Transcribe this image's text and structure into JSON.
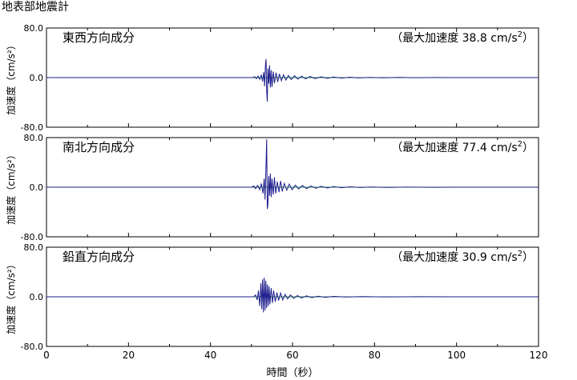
{
  "page": {
    "title": "地表部地震計"
  },
  "chart_data": [
    {
      "type": "line",
      "panel_title": "東西方向成分",
      "peak_label": "（最大加速度 38.8 cm/s",
      "peak_value": 38.8,
      "peak_unit_sup": "2",
      "peak_suffix": "）",
      "ylabel": "加速度（cm/s²）",
      "xlabel": "",
      "ylim": [
        -80.0,
        80.0
      ],
      "yticks": [
        "80.0",
        "0.0",
        "-80.0"
      ],
      "xlim": [
        0,
        120
      ],
      "xticks": [],
      "series": [
        {
          "color": "#1c1c8c",
          "points": [
            [
              0,
              0
            ],
            [
              50.3,
              0
            ],
            [
              50.8,
              1.5
            ],
            [
              51.2,
              -1.8
            ],
            [
              51.6,
              2.5
            ],
            [
              52.0,
              -2.8
            ],
            [
              52.4,
              4
            ],
            [
              52.7,
              -6
            ],
            [
              53.0,
              9
            ],
            [
              53.2,
              -14
            ],
            [
              53.4,
              20
            ],
            [
              53.55,
              30
            ],
            [
              53.7,
              -22
            ],
            [
              53.85,
              -38.8
            ],
            [
              54.0,
              15
            ],
            [
              54.2,
              -10
            ],
            [
              54.4,
              20
            ],
            [
              54.6,
              -16
            ],
            [
              54.8,
              12
            ],
            [
              55.0,
              -15
            ],
            [
              55.3,
              10
            ],
            [
              55.6,
              -9
            ],
            [
              56.0,
              8
            ],
            [
              56.4,
              -7
            ],
            [
              56.8,
              6
            ],
            [
              57.3,
              -5
            ],
            [
              57.8,
              4.5
            ],
            [
              58.4,
              -4
            ],
            [
              59.0,
              3.5
            ],
            [
              59.7,
              -3
            ],
            [
              60.5,
              3
            ],
            [
              61.3,
              -2.5
            ],
            [
              62.2,
              2.2
            ],
            [
              63.2,
              -2
            ],
            [
              64.3,
              1.8
            ],
            [
              65.5,
              -1.5
            ],
            [
              67,
              1.3
            ],
            [
              68.5,
              -1.1
            ],
            [
              70,
              1
            ],
            [
              72,
              -0.8
            ],
            [
              74,
              0.7
            ],
            [
              76,
              -0.5
            ],
            [
              79,
              0.4
            ],
            [
              82,
              -0.3
            ],
            [
              86,
              0.25
            ],
            [
              90,
              -0.2
            ],
            [
              95,
              0.15
            ],
            [
              100,
              0
            ],
            [
              120,
              0
            ]
          ]
        }
      ]
    },
    {
      "type": "line",
      "panel_title": "南北方向成分",
      "peak_label": "（最大加速度 77.4 cm/s",
      "peak_value": 77.4,
      "peak_unit_sup": "2",
      "peak_suffix": "）",
      "ylabel": "加速度（cm/s²）",
      "xlabel": "",
      "ylim": [
        -80.0,
        80.0
      ],
      "yticks": [
        "80.0",
        "0.0",
        "-80.0"
      ],
      "xlim": [
        0,
        120
      ],
      "xticks": [],
      "series": [
        {
          "color": "#1c1c8c",
          "points": [
            [
              0,
              0
            ],
            [
              50.0,
              0
            ],
            [
              50.6,
              2
            ],
            [
              51.0,
              -2.5
            ],
            [
              51.5,
              3
            ],
            [
              52.0,
              -4
            ],
            [
              52.4,
              6
            ],
            [
              52.8,
              -10
            ],
            [
              53.1,
              14
            ],
            [
              53.3,
              -20
            ],
            [
              53.5,
              25
            ],
            [
              53.7,
              77.4
            ],
            [
              53.85,
              -35
            ],
            [
              54.0,
              -28
            ],
            [
              54.2,
              18
            ],
            [
              54.4,
              -14
            ],
            [
              54.6,
              22
            ],
            [
              54.8,
              -16
            ],
            [
              55.0,
              14
            ],
            [
              55.3,
              -12
            ],
            [
              55.6,
              16
            ],
            [
              55.9,
              -10
            ],
            [
              56.3,
              9
            ],
            [
              56.7,
              -8
            ],
            [
              57.1,
              10
            ],
            [
              57.5,
              -7
            ],
            [
              58.0,
              6
            ],
            [
              58.6,
              -5
            ],
            [
              59.2,
              5
            ],
            [
              59.9,
              -4
            ],
            [
              60.7,
              3.5
            ],
            [
              61.5,
              -3
            ],
            [
              62.4,
              2.8
            ],
            [
              63.4,
              -2.4
            ],
            [
              64.5,
              2
            ],
            [
              65.7,
              -1.8
            ],
            [
              67,
              1.5
            ],
            [
              68.5,
              -1.2
            ],
            [
              70,
              1
            ],
            [
              72,
              -0.8
            ],
            [
              74,
              0.7
            ],
            [
              76.5,
              -0.5
            ],
            [
              79,
              0.4
            ],
            [
              83,
              -0.3
            ],
            [
              88,
              0.2
            ],
            [
              94,
              -0.15
            ],
            [
              100,
              0
            ],
            [
              120,
              0
            ]
          ]
        }
      ]
    },
    {
      "type": "line",
      "panel_title": "鉛直方向成分",
      "peak_label": "（最大加速度 30.9 cm/s",
      "peak_value": 30.9,
      "peak_unit_sup": "2",
      "peak_suffix": "）",
      "ylabel": "加速度（cm/s²）",
      "xlabel": "時間（秒）",
      "ylim": [
        -80.0,
        80.0
      ],
      "yticks": [
        "80.0",
        "0.0",
        "-80.0"
      ],
      "xlim": [
        0,
        120
      ],
      "xticks": [
        "0",
        "20",
        "40",
        "60",
        "80",
        "100",
        "120"
      ],
      "series": [
        {
          "color": "#1c1c8c",
          "points": [
            [
              0,
              0
            ],
            [
              50.5,
              0
            ],
            [
              51.0,
              3
            ],
            [
              51.4,
              -5
            ],
            [
              51.7,
              10
            ],
            [
              52.0,
              -15
            ],
            [
              52.3,
              22
            ],
            [
              52.5,
              -20
            ],
            [
              52.7,
              28
            ],
            [
              52.9,
              -25
            ],
            [
              53.1,
              30.9
            ],
            [
              53.3,
              -22
            ],
            [
              53.5,
              26
            ],
            [
              53.7,
              -18
            ],
            [
              53.9,
              20
            ],
            [
              54.1,
              -15
            ],
            [
              54.3,
              17
            ],
            [
              54.5,
              -12
            ],
            [
              54.8,
              14
            ],
            [
              55.1,
              -10
            ],
            [
              55.4,
              10
            ],
            [
              55.8,
              -8
            ],
            [
              56.2,
              7
            ],
            [
              56.6,
              -6
            ],
            [
              57.1,
              6
            ],
            [
              57.6,
              -5
            ],
            [
              58.2,
              4
            ],
            [
              58.8,
              -3.5
            ],
            [
              59.5,
              3
            ],
            [
              60.3,
              -2.5
            ],
            [
              61.2,
              2
            ],
            [
              62.2,
              -1.8
            ],
            [
              63.4,
              1.5
            ],
            [
              64.7,
              -1.2
            ],
            [
              66.2,
              1
            ],
            [
              68,
              -0.8
            ],
            [
              70,
              0.6
            ],
            [
              73,
              -0.4
            ],
            [
              77,
              0.3
            ],
            [
              82,
              -0.2
            ],
            [
              90,
              0.1
            ],
            [
              100,
              0
            ],
            [
              120,
              0
            ]
          ]
        }
      ]
    }
  ]
}
